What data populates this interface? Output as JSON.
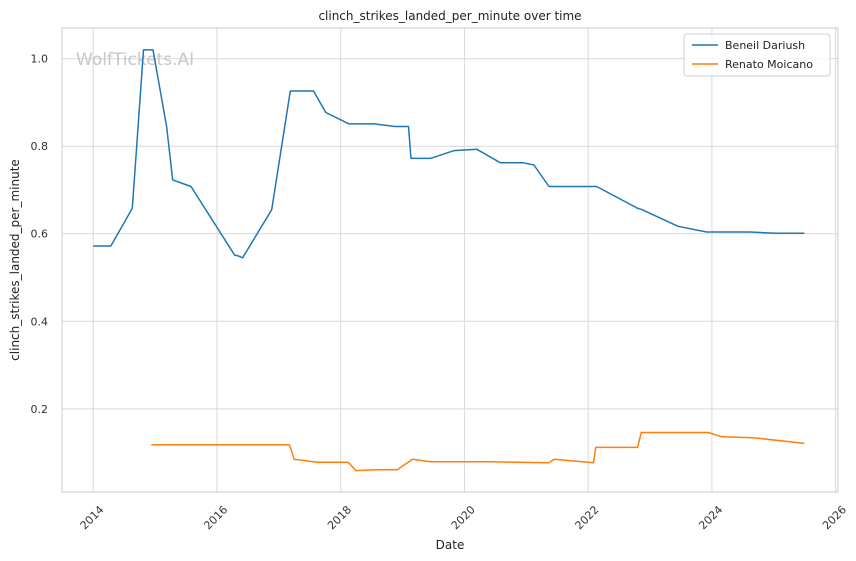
{
  "chart_data": {
    "type": "line",
    "title": "clinch_strikes_landed_per_minute over time",
    "xlabel": "Date",
    "ylabel": "clinch_strikes_landed_per_minute",
    "watermark": "WolfTickets.AI",
    "x_ticks": [
      "2014",
      "2016",
      "2018",
      "2020",
      "2022",
      "2024",
      "2026"
    ],
    "y_ticks": [
      "0.2",
      "0.4",
      "0.6",
      "0.8",
      "1.0"
    ],
    "xlim": [
      "2013-07-01",
      "2026-01-15"
    ],
    "ylim": [
      0.01,
      1.07
    ],
    "grid": true,
    "legend_position": "top-right",
    "series": [
      {
        "name": "Beneil Dariush",
        "color": "#1f77b4",
        "points": [
          [
            "2014-01-01",
            0.572
          ],
          [
            "2014-04-15",
            0.572
          ],
          [
            "2014-08-20",
            0.658
          ],
          [
            "2014-10-25",
            1.02
          ],
          [
            "2014-12-20",
            1.02
          ],
          [
            "2015-03-10",
            0.845
          ],
          [
            "2015-04-15",
            0.723
          ],
          [
            "2015-08-01",
            0.708
          ],
          [
            "2016-04-15",
            0.551
          ],
          [
            "2016-05-01",
            0.55
          ],
          [
            "2016-06-01",
            0.545
          ],
          [
            "2016-11-20",
            0.655
          ],
          [
            "2017-03-10",
            0.926
          ],
          [
            "2017-07-25",
            0.926
          ],
          [
            "2017-10-05",
            0.877
          ],
          [
            "2018-02-20",
            0.851
          ],
          [
            "2018-07-20",
            0.851
          ],
          [
            "2018-11-20",
            0.845
          ],
          [
            "2019-02-05",
            0.845
          ],
          [
            "2019-02-20",
            0.772
          ],
          [
            "2019-06-15",
            0.772
          ],
          [
            "2019-11-01",
            0.79
          ],
          [
            "2020-03-15",
            0.793
          ],
          [
            "2020-08-01",
            0.762
          ],
          [
            "2020-12-15",
            0.762
          ],
          [
            "2021-02-15",
            0.757
          ],
          [
            "2021-05-15",
            0.708
          ],
          [
            "2022-02-20",
            0.708
          ],
          [
            "2022-10-20",
            0.658
          ],
          [
            "2022-11-15",
            0.655
          ],
          [
            "2023-06-15",
            0.617
          ],
          [
            "2023-12-01",
            0.604
          ],
          [
            "2024-08-15",
            0.604
          ],
          [
            "2025-01-15",
            0.601
          ],
          [
            "2025-07-01",
            0.601
          ]
        ]
      },
      {
        "name": "Renato Moicano",
        "color": "#ff7f0e",
        "points": [
          [
            "2014-12-10",
            0.118
          ],
          [
            "2017-03-05",
            0.118
          ],
          [
            "2017-04-01",
            0.085
          ],
          [
            "2017-08-15",
            0.078
          ],
          [
            "2018-02-15",
            0.078
          ],
          [
            "2018-04-01",
            0.059
          ],
          [
            "2018-08-01",
            0.061
          ],
          [
            "2018-12-01",
            0.061
          ],
          [
            "2019-03-01",
            0.085
          ],
          [
            "2019-06-15",
            0.079
          ],
          [
            "2020-06-01",
            0.079
          ],
          [
            "2021-05-15",
            0.077
          ],
          [
            "2021-06-15",
            0.085
          ],
          [
            "2022-02-01",
            0.077
          ],
          [
            "2022-02-15",
            0.112
          ],
          [
            "2022-10-20",
            0.112
          ],
          [
            "2022-11-10",
            0.146
          ],
          [
            "2023-12-10",
            0.146
          ],
          [
            "2024-03-01",
            0.136
          ],
          [
            "2024-09-01",
            0.134
          ],
          [
            "2025-07-01",
            0.121
          ]
        ]
      }
    ]
  }
}
